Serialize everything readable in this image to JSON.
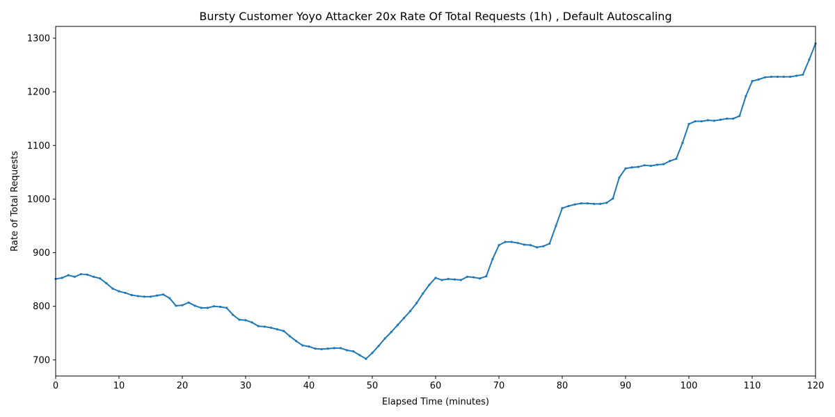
{
  "chart_data": {
    "type": "line",
    "title": "Bursty Customer Yoyo Attacker 20x Rate Of Total Requests (1h) , Default Autoscaling",
    "xlabel": "Elapsed Time (minutes)",
    "ylabel": "Rate of Total Requests",
    "xlim": [
      0,
      120
    ],
    "ylim": [
      670,
      1322
    ],
    "xticks": [
      0,
      10,
      20,
      30,
      40,
      50,
      60,
      70,
      80,
      90,
      100,
      110,
      120
    ],
    "yticks": [
      700,
      800,
      900,
      1000,
      1100,
      1200,
      1300
    ],
    "grid": false,
    "legend": "none",
    "series": [
      {
        "color": "#1f77b4",
        "marker": "dot",
        "x": [
          0,
          1,
          2,
          3,
          4,
          5,
          6,
          7,
          8,
          9,
          10,
          11,
          12,
          13,
          14,
          15,
          16,
          17,
          18,
          19,
          20,
          21,
          22,
          23,
          24,
          25,
          26,
          27,
          28,
          29,
          30,
          31,
          32,
          33,
          34,
          35,
          36,
          37,
          38,
          39,
          40,
          41,
          42,
          43,
          44,
          45,
          46,
          47,
          48,
          49,
          50,
          51,
          52,
          53,
          54,
          55,
          56,
          57,
          58,
          59,
          60,
          61,
          62,
          63,
          64,
          65,
          66,
          67,
          68,
          69,
          70,
          71,
          72,
          73,
          74,
          75,
          76,
          77,
          78,
          79,
          80,
          81,
          82,
          83,
          84,
          85,
          86,
          87,
          88,
          89,
          90,
          91,
          92,
          93,
          94,
          95,
          96,
          97,
          98,
          99,
          100,
          101,
          102,
          103,
          104,
          105,
          106,
          107,
          108,
          109,
          110,
          111,
          112,
          113,
          114,
          115,
          116,
          117,
          118,
          119,
          120
        ],
        "y": [
          851,
          853,
          858,
          855,
          860,
          859,
          855,
          852,
          843,
          833,
          828,
          825,
          821,
          819,
          818,
          818,
          820,
          822,
          815,
          801,
          802,
          807,
          801,
          797,
          797,
          800,
          799,
          797,
          784,
          775,
          774,
          770,
          763,
          762,
          760,
          757,
          754,
          744,
          735,
          727,
          725,
          721,
          720,
          721,
          722,
          722,
          718,
          716,
          709,
          702,
          713,
          726,
          740,
          752,
          765,
          778,
          791,
          806,
          824,
          840,
          853,
          849,
          851,
          850,
          849,
          855,
          854,
          852,
          856,
          888,
          914,
          920,
          920,
          918,
          915,
          914,
          910,
          912,
          917,
          950,
          983,
          987,
          990,
          992,
          992,
          991,
          991,
          993,
          1001,
          1040,
          1057,
          1059,
          1060,
          1063,
          1062,
          1064,
          1065,
          1071,
          1075,
          1105,
          1140,
          1145,
          1145,
          1147,
          1146,
          1148,
          1150,
          1150,
          1155,
          1192,
          1220,
          1223,
          1227,
          1228,
          1228,
          1228,
          1228,
          1230,
          1232,
          1260,
          1290
        ]
      }
    ]
  }
}
